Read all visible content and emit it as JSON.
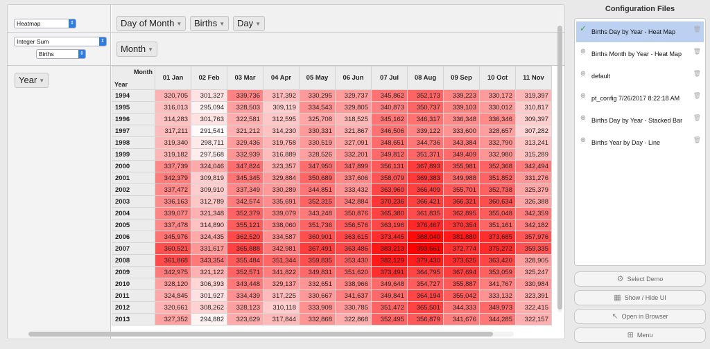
{
  "controls": {
    "renderer": "Heatmap",
    "aggregator": "Integer Sum",
    "attribute": "Births"
  },
  "unused_fields": [
    "Day of Month",
    "Births",
    "Day"
  ],
  "col_fields": [
    "Month"
  ],
  "row_fields": [
    "Year"
  ],
  "table": {
    "col_axis_label": "Month",
    "row_axis_label": "Year",
    "columns": [
      "01 Jan",
      "02 Feb",
      "03 Mar",
      "04 Apr",
      "05 May",
      "06 Jun",
      "07 Jul",
      "08 Aug",
      "09 Sep",
      "10 Oct",
      "11 Nov"
    ],
    "rows": [
      {
        "year": "1994",
        "values": [
          "320,705",
          "301,327",
          "339,736",
          "317,392",
          "330,295",
          "329,737",
          "345,862",
          "352,173",
          "339,223",
          "330,172",
          "319,397"
        ]
      },
      {
        "year": "1995",
        "values": [
          "316,013",
          "295,094",
          "328,503",
          "309,119",
          "334,543",
          "329,805",
          "340,873",
          "350,737",
          "339,103",
          "330,012",
          "310,817"
        ]
      },
      {
        "year": "1996",
        "values": [
          "314,283",
          "301,763",
          "322,581",
          "312,595",
          "325,708",
          "318,525",
          "345,162",
          "346,317",
          "336,348",
          "336,346",
          "309,397"
        ]
      },
      {
        "year": "1997",
        "values": [
          "317,211",
          "291,541",
          "321,212",
          "314,230",
          "330,331",
          "321,867",
          "346,506",
          "339,122",
          "333,600",
          "328,657",
          "307,282"
        ]
      },
      {
        "year": "1998",
        "values": [
          "319,340",
          "298,711",
          "329,436",
          "319,758",
          "330,519",
          "327,091",
          "348,651",
          "344,736",
          "343,384",
          "332,790",
          "313,241"
        ]
      },
      {
        "year": "1999",
        "values": [
          "319,182",
          "297,568",
          "332,939",
          "316,889",
          "328,526",
          "332,201",
          "349,812",
          "351,371",
          "349,409",
          "332,980",
          "315,289"
        ]
      },
      {
        "year": "2000",
        "values": [
          "337,739",
          "324,046",
          "347,824",
          "323,357",
          "347,950",
          "347,899",
          "356,131",
          "367,893",
          "355,981",
          "352,368",
          "342,494"
        ]
      },
      {
        "year": "2001",
        "values": [
          "342,379",
          "309,819",
          "345,345",
          "329,884",
          "350,689",
          "337,606",
          "358,079",
          "369,383",
          "349,988",
          "351,852",
          "331,276"
        ]
      },
      {
        "year": "2002",
        "values": [
          "337,472",
          "309,910",
          "337,349",
          "330,289",
          "344,851",
          "333,432",
          "363,960",
          "366,409",
          "355,701",
          "352,738",
          "325,379"
        ]
      },
      {
        "year": "2003",
        "values": [
          "336,163",
          "312,789",
          "342,574",
          "335,691",
          "352,315",
          "342,884",
          "370,236",
          "366,421",
          "366,321",
          "360,634",
          "326,388"
        ]
      },
      {
        "year": "2004",
        "values": [
          "339,077",
          "321,348",
          "352,379",
          "339,079",
          "343,248",
          "350,876",
          "365,380",
          "361,835",
          "362,895",
          "355,048",
          "342,359"
        ]
      },
      {
        "year": "2005",
        "values": [
          "337,478",
          "314,890",
          "355,121",
          "338,060",
          "351,736",
          "356,576",
          "363,196",
          "376,467",
          "370,354",
          "351,161",
          "342,182"
        ]
      },
      {
        "year": "2006",
        "values": [
          "345,976",
          "324,435",
          "362,520",
          "334,587",
          "360,901",
          "363,615",
          "373,445",
          "388,040",
          "381,880",
          "373,685",
          "357,976"
        ]
      },
      {
        "year": "2007",
        "values": [
          "360,521",
          "331,617",
          "365,888",
          "342,981",
          "367,491",
          "363,486",
          "383,213",
          "393,561",
          "372,774",
          "375,272",
          "359,335"
        ]
      },
      {
        "year": "2008",
        "values": [
          "361,868",
          "343,354",
          "355,484",
          "351,344",
          "359,835",
          "353,430",
          "382,129",
          "379,430",
          "373,625",
          "363,420",
          "328,905"
        ]
      },
      {
        "year": "2009",
        "values": [
          "342,975",
          "321,122",
          "352,571",
          "341,822",
          "349,831",
          "351,620",
          "373,491",
          "364,795",
          "367,694",
          "353,059",
          "325,247"
        ]
      },
      {
        "year": "2010",
        "values": [
          "328,120",
          "306,393",
          "343,448",
          "329,137",
          "332,651",
          "338,966",
          "349,648",
          "354,727",
          "355,887",
          "341,767",
          "330,984"
        ]
      },
      {
        "year": "2011",
        "values": [
          "324,845",
          "301,927",
          "334,439",
          "317,225",
          "330,667",
          "341,637",
          "349,841",
          "364,194",
          "355,042",
          "333,132",
          "323,391"
        ]
      },
      {
        "year": "2012",
        "values": [
          "320,661",
          "308,262",
          "328,123",
          "310,118",
          "333,908",
          "330,785",
          "351,472",
          "365,501",
          "344,333",
          "349,973",
          "322,415"
        ]
      },
      {
        "year": "2013",
        "values": [
          "327,352",
          "294,882",
          "323,629",
          "317,844",
          "332,868",
          "322,868",
          "352,495",
          "356,879",
          "341,676",
          "344,285",
          "322,157"
        ]
      }
    ]
  },
  "heat": {
    "min": 290000,
    "max": 392000,
    "base_color": "#ff0000"
  },
  "config": {
    "title": "Configuration Files",
    "items": [
      {
        "label": "Births Day by Year - Heat Map",
        "selected": true
      },
      {
        "label": "Births Month by Year - Heat Map",
        "selected": false
      },
      {
        "label": "default",
        "selected": false
      },
      {
        "label": "pt_config 7/26/2017 8:22:18 AM",
        "selected": false
      },
      {
        "label": "Births Day by Year - Stacked Bar",
        "selected": false
      },
      {
        "label": "Births Year by Day - Line",
        "selected": false
      }
    ],
    "buttons": [
      "Select Demo",
      "Show  / Hide UI",
      "Open in Browser",
      "Menu"
    ]
  }
}
